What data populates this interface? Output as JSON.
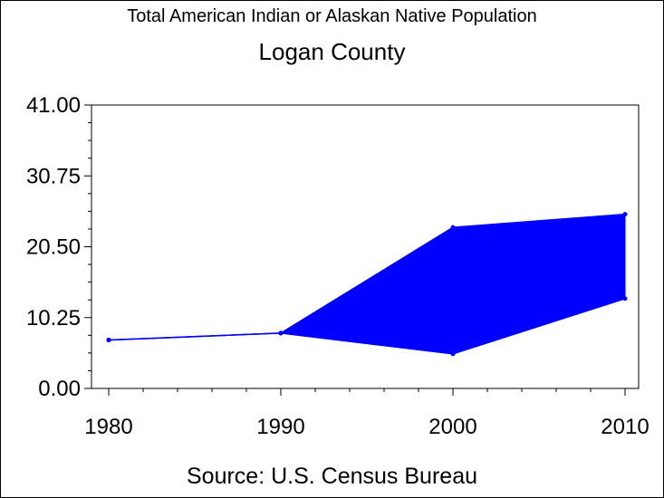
{
  "chart_data": {
    "type": "area",
    "title": "Total American Indian or Alaskan Native Population",
    "subtitle": "Logan County",
    "footnote": "Source: U.S. Census Bureau",
    "x": [
      1980,
      1990,
      2000,
      2010
    ],
    "x_tick_labels": [
      "1980",
      "1990",
      "2000",
      "2010"
    ],
    "y_tick_labels": [
      "0.00",
      "10.25",
      "20.50",
      "30.75",
      "41.00"
    ],
    "ylim": [
      0,
      41
    ],
    "series": [
      {
        "values": [
          7,
          8,
          23.3,
          25.2
        ]
      },
      {
        "values": [
          7,
          8,
          5,
          13
        ]
      }
    ],
    "grid": false,
    "colors": {
      "fill": "#0000ff",
      "line": "#0000ff",
      "axis": "#000000"
    }
  }
}
